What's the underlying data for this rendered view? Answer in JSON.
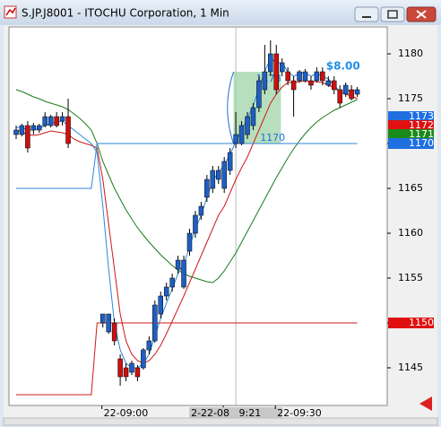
{
  "window": {
    "title": "S.JP.J8001 - ITOCHU Corporation, 1 Min"
  },
  "chart_data": {
    "type": "candlestick",
    "categories": [
      null,
      null,
      null,
      null,
      null,
      null,
      null,
      null,
      null,
      null,
      null,
      null,
      null,
      null,
      null,
      null,
      null,
      "22-09:00",
      null,
      null,
      null,
      null,
      null,
      null,
      null,
      null,
      null,
      null,
      null,
      null,
      null,
      null,
      null,
      null,
      null,
      null,
      null,
      null,
      "2-22-08   9:21",
      null,
      null,
      null,
      null,
      null,
      null,
      null,
      null,
      "22-09:30",
      null,
      null,
      null,
      null,
      null,
      null,
      null,
      null,
      null,
      null,
      null,
      null
    ],
    "open": [
      1171,
      1171,
      1172,
      1171.5,
      1171.5,
      1172,
      1172,
      1173,
      1172.5,
      1173,
      null,
      null,
      null,
      null,
      null,
      1150,
      1149,
      1150,
      1146,
      1145,
      1144.5,
      1145,
      1145,
      1147,
      1148,
      1151,
      1153,
      1154,
      1156,
      1154,
      1158,
      1160,
      1162,
      1164,
      1165,
      1166,
      1165,
      1167,
      1170,
      1170,
      1171,
      1172,
      1174,
      1176,
      1178,
      1180,
      1178,
      1178,
      1177,
      1177,
      1177,
      1177,
      1177,
      1178,
      1176.5,
      1177,
      1176,
      1175.5,
      1176,
      1175.5
    ],
    "high": [
      1172,
      1172.2,
      1172.5,
      1172.3,
      1172.2,
      1173.5,
      1173.2,
      1173.5,
      1173.5,
      1175,
      null,
      null,
      null,
      null,
      null,
      1151,
      1151,
      1150.5,
      1146.5,
      1145.5,
      1145.8,
      1145.3,
      1147.2,
      1148.5,
      1152.5,
      1153.5,
      1154.5,
      1155.5,
      1157.5,
      1157.5,
      1160.5,
      1162.5,
      1163.5,
      1166.5,
      1167.5,
      1167.5,
      1168.5,
      1169.5,
      1173.5,
      1172.5,
      1173.5,
      1174.5,
      1177.5,
      1181,
      1181.5,
      1181,
      1179.5,
      1178.5,
      1177.5,
      1178.2,
      1178.3,
      1177.5,
      1178.5,
      1178.5,
      1177.5,
      1177.5,
      1176.5,
      1176.8,
      1176.5,
      1176.3
    ],
    "low": [
      1170.5,
      1170.8,
      1169,
      1171,
      1171.2,
      1171.8,
      1171.8,
      1171.8,
      1172,
      1169.5,
      null,
      null,
      null,
      null,
      null,
      1149.5,
      1148.8,
      1147.5,
      1143,
      1143.5,
      1144.2,
      1143.5,
      1144.8,
      1146.5,
      1147.8,
      1150.5,
      1152.5,
      1153.5,
      1155.5,
      1153.8,
      1157.5,
      1159.5,
      1161.5,
      1163.5,
      1164.5,
      1165.5,
      1164.5,
      1166.5,
      1169.5,
      1169.8,
      1170.5,
      1171.5,
      1173.5,
      1175.5,
      1177.5,
      1175.5,
      1177.5,
      1176.5,
      1173,
      1176.8,
      1176.8,
      1176,
      1176.8,
      1176.5,
      1176.3,
      1175.5,
      1174,
      1175.2,
      1174.8,
      1175.2
    ],
    "close": [
      1171.5,
      1172,
      1169.5,
      1172,
      1172,
      1173,
      1173,
      1172,
      1173,
      1170,
      null,
      null,
      null,
      null,
      null,
      1151,
      1151,
      1148,
      1144,
      1144,
      1145.5,
      1144,
      1147,
      1148,
      1152,
      1153,
      1154,
      1155,
      1157,
      1157,
      1160,
      1162,
      1163,
      1166,
      1167,
      1167,
      1168,
      1169,
      1171,
      1172,
      1173,
      1174,
      1177,
      1178,
      1180,
      1176,
      1179,
      1177,
      1176,
      1178,
      1178,
      1176.5,
      1178,
      1177,
      1177,
      1176,
      1174.5,
      1176.5,
      1175,
      1176
    ],
    "up_color": "#1f5fc4",
    "down_color": "#cc1010",
    "series": [
      {
        "color": "#1a7a1a",
        "values": [
          1176,
          1175.8,
          1175.5,
          1175.2,
          1175,
          1174.7,
          1174.5,
          1174.3,
          1174.1,
          1173.8,
          1173.3,
          1172.8,
          1172.2,
          1171.5,
          1170,
          1168,
          1166.5,
          1165,
          1163.8,
          1162.6,
          1161.6,
          1160.6,
          1159.8,
          1159,
          1158.3,
          1157.6,
          1157,
          1156.4,
          1155.9,
          1155.5,
          1155.2,
          1155,
          1154.8,
          1154.6,
          1154.5,
          1155,
          1155.8,
          1156.8,
          1157.8,
          1159,
          1160.2,
          1161.4,
          1162.6,
          1163.8,
          1165,
          1166.2,
          1167.3,
          1168.4,
          1169.4,
          1170.3,
          1171.1,
          1171.8,
          1172.4,
          1172.9,
          1173.3,
          1173.7,
          1174,
          1174.3,
          1174.6,
          1174.9
        ]
      },
      {
        "color": "#d01818",
        "values": [
          1171.5,
          1171.3,
          1171,
          1170.9,
          1171,
          1171.2,
          1171.4,
          1171.3,
          1171.2,
          1171,
          1170.5,
          1170.2,
          1170,
          1169.8,
          1169.5,
          1166,
          1161,
          1156,
          1151,
          1148,
          1146.5,
          1145.8,
          1145.5,
          1145.8,
          1146.5,
          1147.5,
          1148.8,
          1150.2,
          1151.6,
          1153,
          1154.5,
          1156,
          1157.5,
          1159,
          1160.5,
          1162,
          1163,
          1164.5,
          1166,
          1167.3,
          1168.5,
          1170,
          1171.5,
          1173,
          1174.5,
          1175.5,
          1176.3,
          1176.8,
          1176.8,
          1176.9,
          1177,
          1176.9,
          1176.9,
          1176.8,
          1176.5,
          1176.2,
          1175.8,
          1175.5,
          1175.3,
          1175
        ]
      },
      {
        "color": "#2b86d8",
        "values": [
          1171.8,
          1171.8,
          1171.5,
          1171.5,
          1171.7,
          1172,
          1172.3,
          1172.4,
          1172.5,
          1172,
          1171.5,
          1171,
          1170.5,
          1170,
          1169,
          1163,
          1156,
          1150,
          1147,
          1145.5,
          1145,
          1145,
          1145.5,
          1146.5,
          1148.5,
          1150.5,
          1152.2,
          1153.8,
          1155.5,
          1156.5,
          1158.5,
          1160.5,
          1162,
          1164,
          1165.8,
          1166.8,
          1167.6,
          1168.8,
          1170.2,
          1171.5,
          1172.8,
          1174.2,
          1176.2,
          1178,
          1179.5,
          1179,
          1179,
          1178,
          1177.5,
          1177.8,
          1177.9,
          1177.5,
          1177.8,
          1177.5,
          1177.2,
          1176.5,
          1175.8,
          1176,
          1175.8,
          1176
        ]
      },
      {
        "color": "#2b86d8",
        "values": [
          1165,
          1165,
          1165,
          1165,
          1165,
          1165,
          1165,
          1165,
          1165,
          1165,
          1165,
          1165,
          1165,
          1165,
          1170,
          1170,
          1170,
          1170,
          1170,
          1170,
          1170,
          1170,
          1170,
          1170,
          1170,
          1170,
          1170,
          1170,
          1170,
          1170,
          1170,
          1170,
          1170,
          1170,
          1170,
          1170,
          1170,
          1170,
          1170,
          1170,
          1170,
          1170,
          1170,
          1170,
          1170,
          1170,
          1170,
          1170,
          1170,
          1170,
          1170,
          1170,
          1170,
          1170,
          1170,
          1170,
          1170,
          1170,
          1170,
          1170
        ]
      },
      {
        "color": "#d01818",
        "values": [
          1142,
          1142,
          1142,
          1142,
          1142,
          1142,
          1142,
          1142,
          1142,
          1142,
          1142,
          1142,
          1142,
          1142,
          1150,
          1150,
          1150,
          1150,
          1150,
          1150,
          1150,
          1150,
          1150,
          1150,
          1150,
          1150,
          1150,
          1150,
          1150,
          1150,
          1150,
          1150,
          1150,
          1150,
          1150,
          1150,
          1150,
          1150,
          1150,
          1150,
          1150,
          1150,
          1150,
          1150,
          1150,
          1150,
          1150,
          1150,
          1150,
          1150,
          1150,
          1150,
          1150,
          1150,
          1150,
          1150,
          1150,
          1150,
          1150,
          1150
        ]
      }
    ],
    "ylim": [
      1140.8,
      1183
    ],
    "yticks": [
      1145,
      1150,
      1155,
      1160,
      1165,
      1170,
      1175,
      1180
    ],
    "price_tags": [
      {
        "value": 1173,
        "color": "#1f6fe0"
      },
      {
        "value": 1172,
        "color": "#e01010"
      },
      {
        "value": 1171,
        "color": "#1a8a1a"
      },
      {
        "value": 1170,
        "color": "#1f6fe0"
      },
      {
        "value": 1150,
        "color": "#e01010"
      }
    ],
    "range_box": {
      "top": 1178,
      "bottom": 1170
    },
    "annotation": "$8.00"
  }
}
